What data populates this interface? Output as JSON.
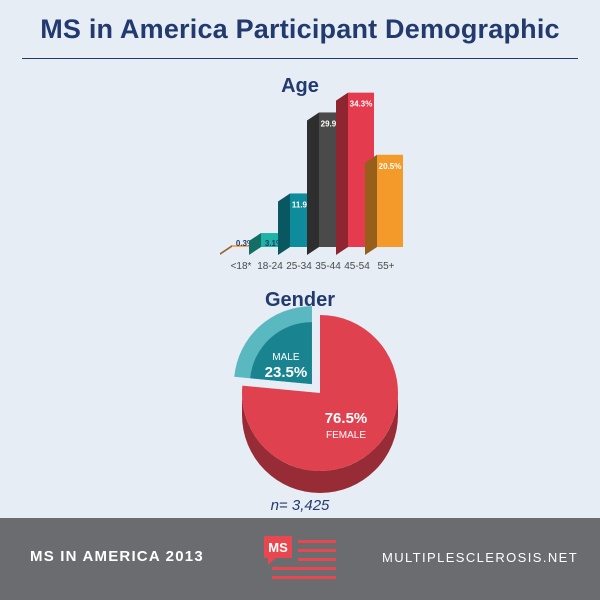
{
  "title": "MS in America Participant Demographic",
  "sample_size": "n= 3,425",
  "footer": {
    "left_text": "MS IN AMERICA 2013",
    "logo_text": "MS",
    "right_text": "MULTIPLESCLEROSIS.NET"
  },
  "colors": {
    "title": "#233a6e",
    "footer_bg": "#6a6c6f",
    "logo": "#e8474f"
  },
  "chart_data": [
    {
      "type": "bar",
      "title": "Age",
      "categories": [
        "<18*",
        "18-24",
        "25-34",
        "35-44",
        "45-54",
        "55+"
      ],
      "values": [
        0.3,
        3.1,
        11.9,
        29.9,
        34.3,
        20.5
      ],
      "value_labels": [
        "0.3%",
        "3.1%",
        "11.9%",
        "29.9%",
        "34.3%",
        "20.5%"
      ],
      "colors": [
        "#f4a553",
        "#1fb3a5",
        "#0f8c9b",
        "#4a4a4a",
        "#e53b4f",
        "#f39a2a"
      ],
      "ylim": [
        0,
        36
      ]
    },
    {
      "type": "pie",
      "title": "Gender",
      "labels": [
        "MALE",
        "FEMALE"
      ],
      "values": [
        23.5,
        76.5
      ],
      "value_labels": [
        "23.5%",
        "76.5%"
      ],
      "colors": [
        "#1a8390",
        "#e0414f"
      ]
    }
  ]
}
